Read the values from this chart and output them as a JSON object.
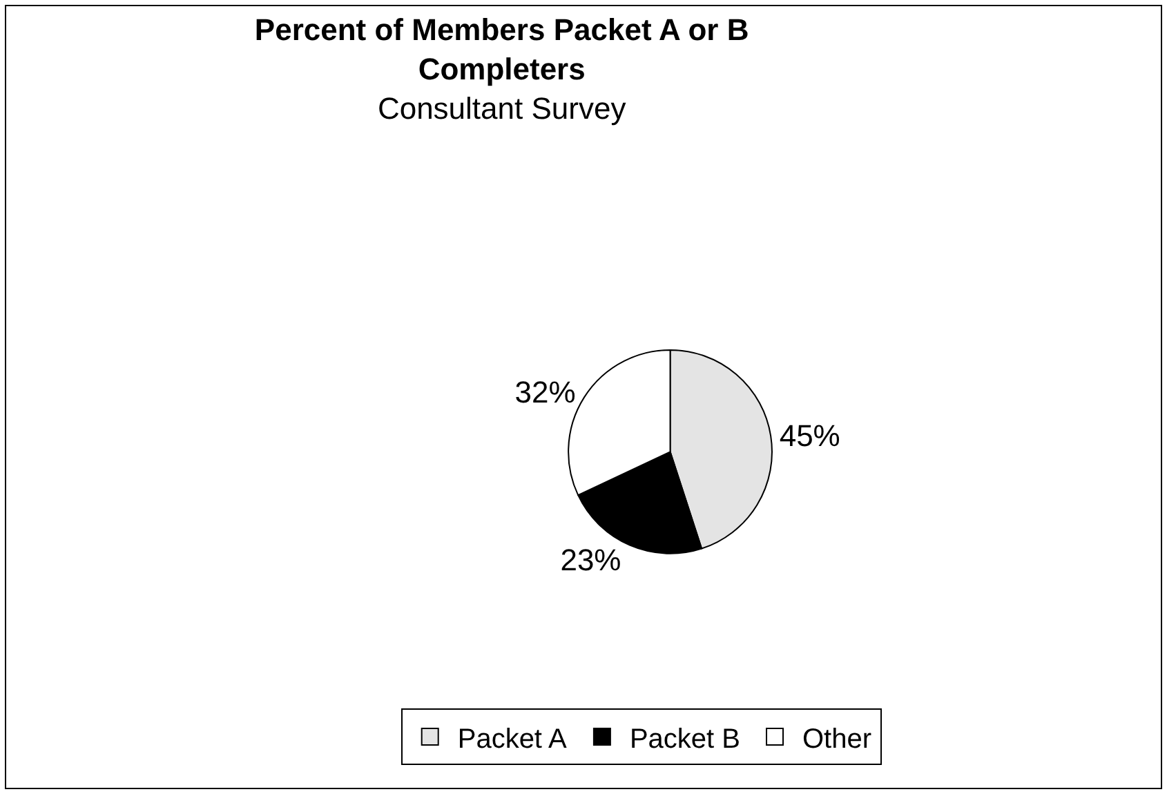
{
  "chart_data": {
    "type": "pie",
    "title": "Percent of Members Packet A or B Completers",
    "subtitle": "Consultant Survey",
    "categories": [
      "Packet A",
      "Packet B",
      "Other"
    ],
    "values": [
      45,
      23,
      32
    ],
    "value_labels": [
      "45%",
      "23%",
      "32%"
    ],
    "colors": [
      "#e4e4e4",
      "#000000",
      "#ffffff"
    ],
    "legend": "bottom"
  }
}
